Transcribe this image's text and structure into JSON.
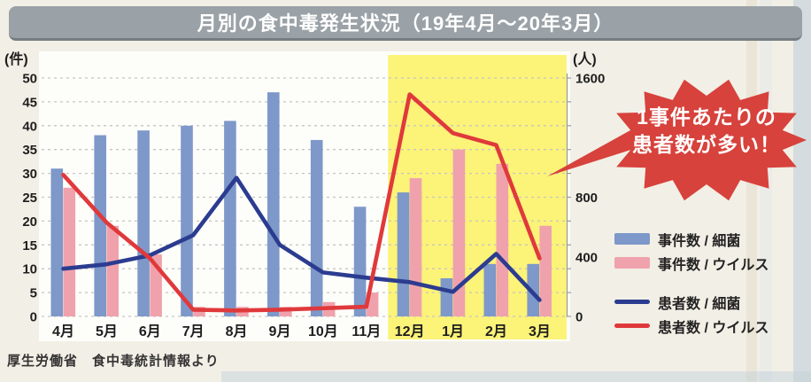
{
  "title": "月別の食中毒発生状況（19年4月～20年3月）",
  "source_note": "厚生労働省　食中毒統計情報より",
  "callout": {
    "line1": "1事件あたりの",
    "line2": "患者数が多い！",
    "color": "#d7423c"
  },
  "colors": {
    "bar_bacteria": "#7d98c9",
    "bar_virus": "#f0a2ac",
    "line_bacteria": "#2b3c90",
    "line_virus": "#e0393b",
    "highlight_yellow": "#fcf379",
    "title_bar_gray": "#9aa2a7"
  },
  "chart_data": {
    "type": "bar+line combo",
    "categories": [
      "4月",
      "5月",
      "6月",
      "7月",
      "8月",
      "9月",
      "10月",
      "11月",
      "12月",
      "1月",
      "2月",
      "3月"
    ],
    "left_axis": {
      "unit": "(件)",
      "min": 0,
      "max": 50,
      "tick_step": 5,
      "tick_labels": [
        50,
        45,
        40,
        35,
        30,
        25,
        20,
        15,
        10,
        5,
        0
      ]
    },
    "right_axis": {
      "unit": "(人)",
      "min": 0,
      "max": 1600,
      "visible_tick_labels": [
        1600,
        800,
        400,
        0
      ]
    },
    "grid": "dashed horizontal every 5 (left axis units)",
    "legend_position": "right",
    "series": [
      {
        "key": "bars-bacteria",
        "name": "事件数/細菌",
        "kind": "bar",
        "axis": "left",
        "color": "#7d98c9",
        "values": [
          31,
          38,
          39,
          40,
          41,
          47,
          37,
          23,
          26,
          8,
          11,
          11
        ]
      },
      {
        "key": "bars-virus",
        "name": "事件数/ウイルス",
        "kind": "bar",
        "axis": "left",
        "color": "#f0a2ac",
        "values": [
          27,
          19,
          13,
          2,
          2,
          2,
          3,
          5,
          29,
          35,
          32,
          19
        ]
      },
      {
        "key": "line-bacteria",
        "name": "患者数/細菌",
        "kind": "line",
        "axis": "right",
        "color": "#2b3c90",
        "values": [
          320,
          350,
          410,
          545,
          930,
          480,
          295,
          260,
          230,
          165,
          420,
          110
        ]
      },
      {
        "key": "line-virus",
        "name": "患者数/ウイルス",
        "kind": "line",
        "axis": "right",
        "color": "#e0393b",
        "values": [
          950,
          630,
          390,
          45,
          40,
          45,
          55,
          65,
          1490,
          1230,
          1150,
          390
        ]
      }
    ],
    "highlight": {
      "months": [
        "12月",
        "1月",
        "2月",
        "3月"
      ],
      "color": "#fcf379",
      "note": "yellow band over December–March"
    }
  },
  "legend": {
    "items": [
      {
        "label": "事件数 / 細菌",
        "swatch": "bar",
        "color": "#7d98c9"
      },
      {
        "label": "事件数 / ウイルス",
        "swatch": "bar",
        "color": "#f0a2ac"
      },
      {
        "label": "患者数 / 細菌",
        "swatch": "line",
        "color": "#2b3c90"
      },
      {
        "label": "患者数 / ウイルス",
        "swatch": "line",
        "color": "#e0393b"
      }
    ]
  }
}
